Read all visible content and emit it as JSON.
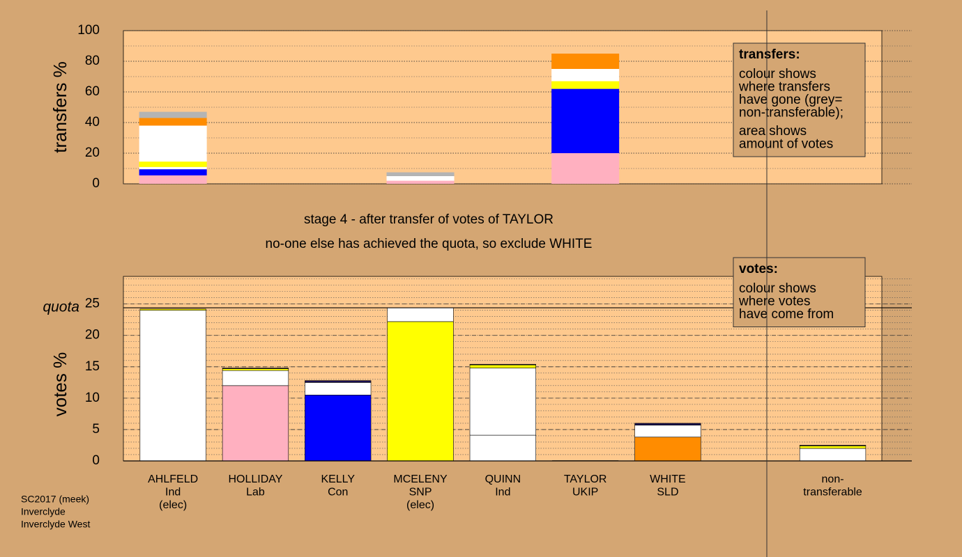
{
  "stage_title": "stage 4 - after transfer of votes of TAYLOR",
  "stage_note": "no-one else has achieved the quota, so exclude WHITE",
  "footer": [
    "SC2017 (meek)",
    "Inverclyde",
    "Inverclyde West"
  ],
  "chart_data": [
    {
      "type": "bar",
      "stacked": true,
      "y_label": "transfers %",
      "ylim": [
        0,
        100
      ],
      "yticks": [
        0,
        20,
        40,
        60,
        80,
        100
      ],
      "grid": true,
      "note_title": "transfers:",
      "note_lines": [
        "colour shows",
        "where transfers",
        "have gone (grey=",
        "non-transferable);",
        "area shows",
        "amount of votes"
      ],
      "categories": [
        null,
        null,
        null,
        null,
        null,
        null,
        null,
        null,
        null
      ],
      "series": [
        {
          "color": "#ffb0c0",
          "values": [
            5.5,
            0,
            0,
            2,
            0,
            20,
            0,
            0,
            0
          ]
        },
        {
          "color": "#0000ff",
          "values": [
            4,
            0,
            0,
            0,
            0,
            42,
            0,
            0,
            0
          ]
        },
        {
          "color": "#ffffff",
          "values": [
            1.5,
            0,
            0,
            0,
            0,
            0,
            0,
            0,
            0
          ]
        },
        {
          "color": "#ffff00",
          "values": [
            3.5,
            0,
            0,
            0,
            0,
            5,
            0,
            0,
            0
          ]
        },
        {
          "color": "#ffffff",
          "values": [
            23.5,
            0,
            0,
            3,
            0,
            8,
            0,
            0,
            0
          ]
        },
        {
          "color": "#ff8c00",
          "values": [
            5,
            0,
            0,
            0,
            0,
            10,
            0,
            0,
            0
          ]
        },
        {
          "color": "#b4b4b4",
          "values": [
            4,
            0,
            0,
            2.5,
            0,
            0,
            0,
            0,
            0
          ]
        }
      ]
    },
    {
      "type": "bar",
      "stacked": true,
      "y_label": "votes %",
      "ylim": [
        0,
        29.4
      ],
      "yticks": [
        0,
        5,
        10,
        15,
        20,
        25
      ],
      "grid": true,
      "quota": 24.4,
      "quota_label": "quota",
      "note_title": "votes:",
      "note_lines": [
        "colour shows",
        "where votes",
        "have come from"
      ],
      "categories": [
        "AHLFELD",
        "HOLLIDAY",
        "KELLY",
        "MCELENY",
        "QUINN",
        "TAYLOR",
        "WHITE",
        null,
        "non-"
      ],
      "parties": [
        "Ind",
        "Lab",
        "Con",
        "SNP",
        "Ind",
        "UKIP",
        "SLD",
        null,
        "transferable"
      ],
      "status": [
        "(elec)",
        null,
        null,
        "(elec)",
        null,
        null,
        null,
        null,
        null
      ],
      "series": [
        {
          "colors": [
            "#ffffff",
            "#ffb0c0",
            "#0000ff",
            "#ffff00",
            "#ffffff",
            "#800080",
            "#ff8c00",
            null,
            "#ffffff"
          ],
          "values": [
            24.0,
            12.0,
            10.5,
            22.2,
            4.1,
            0.05,
            3.8,
            null,
            0
          ]
        },
        {
          "color": "#ffffff",
          "values": [
            0,
            2.4,
            2.0,
            2.2,
            10.7,
            0,
            1.9,
            null,
            2.0
          ]
        },
        {
          "color": "#ffff00",
          "values": [
            0.2,
            0.3,
            0,
            0,
            0.5,
            0,
            0,
            null,
            0.4
          ]
        },
        {
          "color": "#1a1050",
          "values": [
            0,
            0.1,
            0.3,
            0,
            0.1,
            0,
            0.3,
            null,
            0.1
          ]
        }
      ]
    }
  ]
}
